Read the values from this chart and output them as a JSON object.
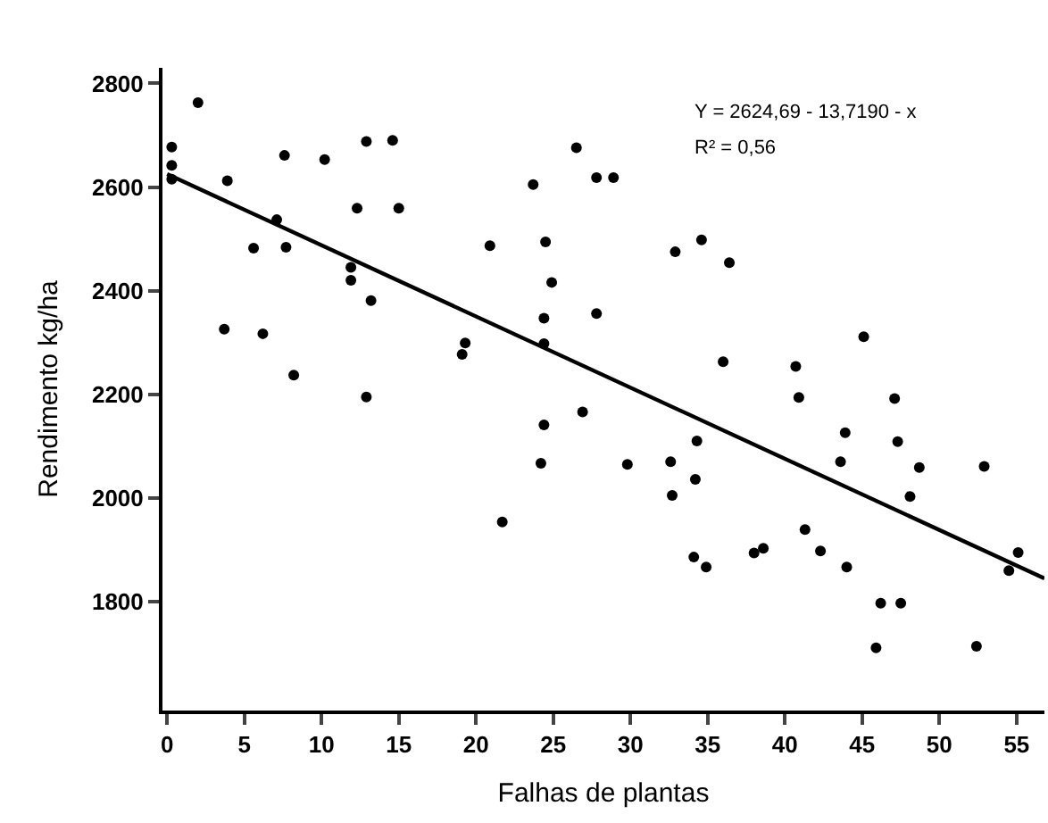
{
  "chart_data": {
    "type": "scatter",
    "xlabel": "Falhas de plantas",
    "ylabel": "Rendimento kg/ha",
    "annotations": [
      "Y = 2624,69 - 13,7190 - x",
      "R² = 0,56"
    ],
    "series": [
      {
        "color": "#000000",
        "marker": "circle",
        "x": [
          0.3,
          0.3,
          0.3,
          2.0,
          3.9,
          7.6,
          10.2,
          12.9,
          14.6,
          12.3,
          15.0,
          7.1,
          5.6,
          7.7,
          11.9,
          11.9,
          13.2,
          3.7,
          6.2,
          8.2,
          12.9,
          26.5,
          23.7,
          27.8,
          28.9,
          20.9,
          24.5,
          32.9,
          34.6,
          36.4,
          24.9,
          24.4,
          27.8,
          19.3,
          19.1,
          24.4,
          36.0,
          26.9,
          24.4,
          34.3,
          45.1,
          40.7,
          40.9,
          47.1,
          43.9,
          47.3,
          24.2,
          21.7,
          29.8,
          32.6,
          34.2,
          32.7,
          43.6,
          48.7,
          48.1,
          52.9,
          41.3,
          38.0,
          38.6,
          42.3,
          34.1,
          34.9,
          44.0,
          55.1,
          54.5,
          46.2,
          47.5,
          45.9,
          52.4
        ],
        "values": [
          2677,
          2642,
          2615,
          2763,
          2612,
          2661,
          2653,
          2688,
          2690,
          2559,
          2559,
          2537,
          2482,
          2484,
          2445,
          2420,
          2381,
          2326,
          2317,
          2237,
          2195,
          2676,
          2605,
          2618,
          2618,
          2487,
          2494,
          2475,
          2498,
          2454,
          2416,
          2347,
          2356,
          2299,
          2277,
          2298,
          2263,
          2166,
          2141,
          2110,
          2311,
          2254,
          2194,
          2192,
          2126,
          2109,
          2067,
          1954,
          2065,
          2070,
          2036,
          2005,
          2070,
          2059,
          2003,
          2061,
          1939,
          1894,
          1903,
          1898,
          1886,
          1867,
          1867,
          1895,
          1860,
          1797,
          1797,
          1711,
          1714
        ]
      },
      {
        "type": "line",
        "color": "#000000",
        "x": [
          0,
          56.8
        ],
        "values": [
          2625,
          1845
        ]
      }
    ],
    "xlim": [
      -0.3,
      56.8
    ],
    "xticks": [
      0,
      5,
      10,
      15,
      20,
      25,
      30,
      35,
      40,
      45,
      50,
      55
    ],
    "ylim": [
      1590,
      2830
    ],
    "yticks": [
      1800,
      2000,
      2200,
      2400,
      2600,
      2800
    ]
  }
}
